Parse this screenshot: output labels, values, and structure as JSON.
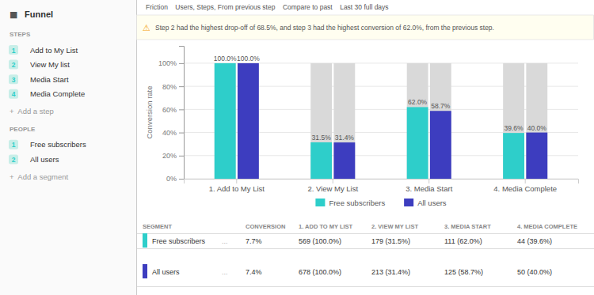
{
  "chart_data": {
    "type": "bar",
    "ylabel": "Conversion rate",
    "categories": [
      "1. Add to My List",
      "2. View My List",
      "3. Media Start",
      "4. Media Complete"
    ],
    "series": [
      {
        "name": "Free subscribers",
        "color": "#2ECECA",
        "values": [
          100.0,
          31.5,
          62.0,
          39.6
        ],
        "value_labels": [
          "100.0%",
          "31.5%",
          "62.0%",
          "39.6%"
        ]
      },
      {
        "name": "All users",
        "color": "#3D3DBF",
        "values": [
          100.0,
          31.4,
          58.7,
          40.0
        ],
        "value_labels": [
          "100.0%",
          "31.4%",
          "58.7%",
          "40.0%"
        ]
      }
    ],
    "track_value": 100,
    "ylim": [
      0,
      115
    ],
    "yticks": [
      {
        "value": 0,
        "label": "0%"
      },
      {
        "value": 20,
        "label": "20%"
      },
      {
        "value": 40,
        "label": "40%"
      },
      {
        "value": 60,
        "label": "60%"
      },
      {
        "value": 80,
        "label": "80%"
      },
      {
        "value": 100,
        "label": "100%"
      }
    ],
    "grid": true,
    "legend": "bottom",
    "data_labels": true,
    "toolbar": "Friction    Users, Steps, From previous step    Compare to past    Last 30 full days",
    "annotation_icon": "⚠",
    "annotation": "Step 2 had the highest drop-off of 68.5%, and step 3 had the highest conversion of 62.0%, from the previous step.",
    "sidebar": {
      "icon": "■",
      "title": "Funnel",
      "sections": [
        {
          "label": "STEPS",
          "items": [
            {
              "number": 1,
              "label": "Add to My List"
            },
            {
              "number": 2,
              "label": "View My list"
            },
            {
              "number": 3,
              "label": "Media Start"
            },
            {
              "number": 4,
              "label": "Media Complete"
            }
          ],
          "add": "+  Add a step"
        },
        {
          "label": "PEOPLE",
          "items": [
            {
              "number": 1,
              "label": "Free subscribers"
            },
            {
              "number": 2,
              "label": "All users"
            }
          ],
          "add": "+  Add a segment"
        }
      ]
    },
    "table": {
      "headers": [
        "SEGMENT",
        "CONVERSION",
        "1. ADD TO MY LIST",
        "2. VIEW MY LIST",
        "3. MEDIA START",
        "4. MEDIA COMPLETE"
      ],
      "ellipsis": "...",
      "rows": [
        [
          "Free subscribers",
          "7.7%",
          "569 (100.0%)",
          "179 (31.5%)",
          "111 (62.0%)",
          "44 (39.6%)"
        ],
        [
          "All users",
          "7.4%",
          "678 (100.0%)",
          "213 (31.4%)",
          "125 (58.7%)",
          "50 (40.0%)"
        ]
      ]
    }
  }
}
